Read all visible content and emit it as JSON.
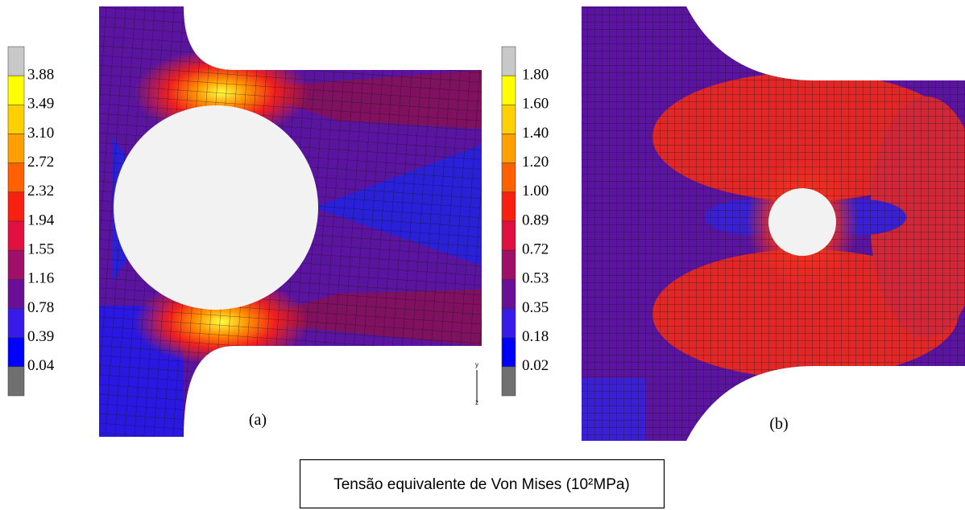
{
  "panels": [
    {
      "label": "(a)",
      "scale": [
        "3.88",
        "3.49",
        "3.10",
        "2.72",
        "2.32",
        "1.94",
        "1.55",
        "1.16",
        "0.78",
        "0.39",
        "0.04"
      ],
      "axis_labels": [
        "y",
        "z"
      ]
    },
    {
      "label": "(b)",
      "scale": [
        "1.80",
        "1.60",
        "1.40",
        "1.20",
        "1.00",
        "0.89",
        "0.72",
        "0.53",
        "0.35",
        "0.18",
        "0.02"
      ]
    }
  ],
  "caption": "Tensão equivalente de Von Mises (10²MPa)"
}
